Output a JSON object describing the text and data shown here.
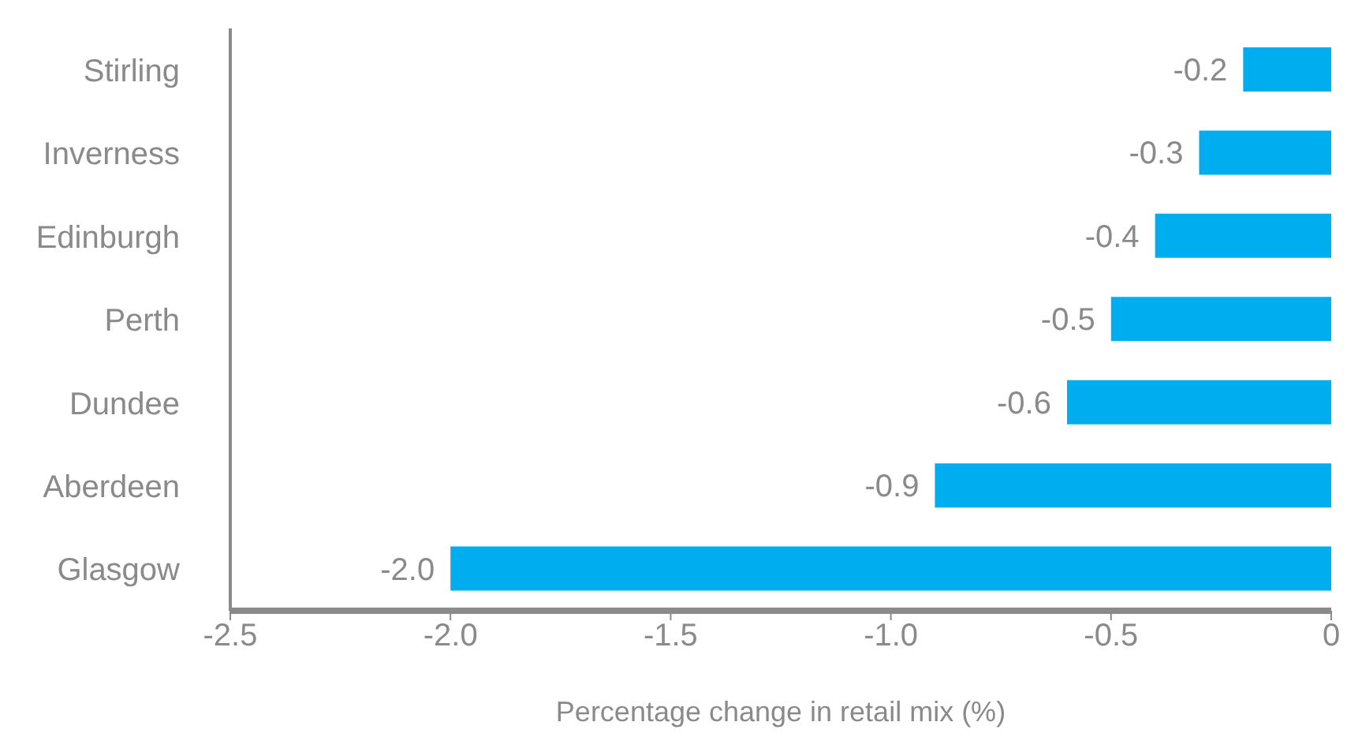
{
  "chart_data": {
    "type": "bar",
    "orientation": "horizontal",
    "xlabel": "Percentage change in retail mix (%)",
    "categories": [
      "Stirling",
      "Inverness",
      "Edinburgh",
      "Perth",
      "Dundee",
      "Aberdeen",
      "Glasgow"
    ],
    "values": [
      -0.2,
      -0.3,
      -0.4,
      -0.5,
      -0.6,
      -0.9,
      -2.0
    ],
    "value_labels": [
      "-0.2",
      "-0.3",
      "-0.4",
      "-0.5",
      "-0.6",
      "-0.9",
      "-2.0"
    ],
    "color": "#00aeef",
    "xlim": [
      -2.5,
      0
    ],
    "xticks": [
      {
        "value": -2.5,
        "label": "-2.5"
      },
      {
        "value": -2,
        "label": "-2.0"
      },
      {
        "value": -1.5,
        "label": "-1.5"
      },
      {
        "value": -1,
        "label": "-1.0"
      },
      {
        "value": -0.5,
        "label": "-0.5"
      },
      0
    ],
    "grid": false
  }
}
